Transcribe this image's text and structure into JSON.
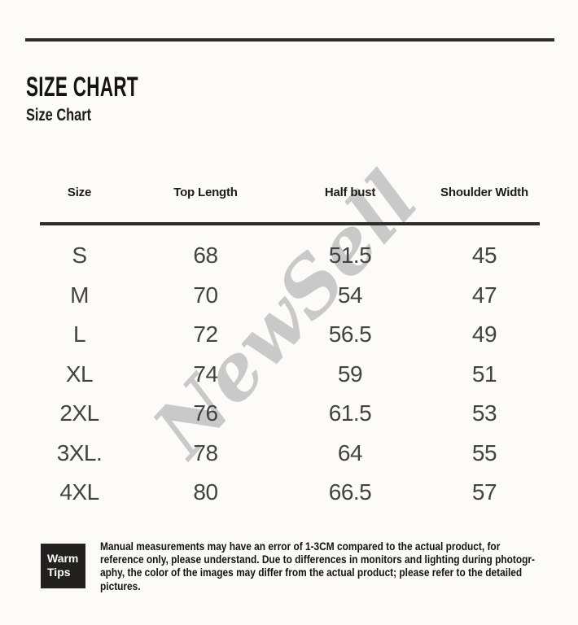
{
  "header": {
    "title": "SIZE CHART",
    "subtitle": "Size Chart"
  },
  "table": {
    "columns": [
      "Size",
      "Top Length",
      "Half bust",
      "Shoulder Width"
    ],
    "rows": [
      [
        "S",
        "68",
        "51.5",
        "45"
      ],
      [
        "M",
        "70",
        "54",
        "47"
      ],
      [
        "L",
        "72",
        "56.5",
        "49"
      ],
      [
        "XL",
        "74",
        "59",
        "51"
      ],
      [
        "2XL",
        "76",
        "61.5",
        "53"
      ],
      [
        "3XL.",
        "78",
        "64",
        "55"
      ],
      [
        "4XL",
        "80",
        "66.5",
        "57"
      ]
    ]
  },
  "watermark": {
    "text": "NewSell",
    "color": "#c7c7c7"
  },
  "tips": {
    "label": "Warm\nTips",
    "text": "Manual measurements may have an error of 1-3CM compared to the actual product, for\nreference only, please understand. Due to differences in monitors and lighting during photogr-\naphy, the color of the images may differ from the actual product; please refer to the detailed\npictures."
  },
  "colors": {
    "background": "#fcfbf8",
    "rule": "#2d2c29",
    "tips_badge_bg": "#232120",
    "table_text": "#434343"
  }
}
